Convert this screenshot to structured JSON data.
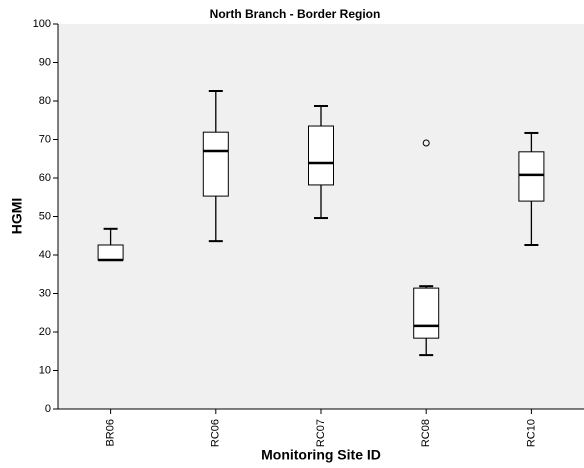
{
  "chart_data": {
    "type": "box",
    "title": "North Branch - Border Region",
    "x_label": "Monitoring Site ID",
    "y_label": "HGMI",
    "categories": [
      "BR06",
      "RC06",
      "RC07",
      "RC08",
      "RC10"
    ],
    "min": [
      38.7,
      43.6,
      49.6,
      14.0,
      42.6
    ],
    "q1": [
      38.7,
      55.3,
      58.2,
      18.4,
      54.0
    ],
    "median": [
      38.7,
      67.0,
      63.9,
      21.6,
      60.8
    ],
    "q3": [
      42.6,
      71.9,
      73.5,
      31.4,
      66.8
    ],
    "max": [
      46.8,
      82.6,
      78.7,
      31.9,
      71.7
    ],
    "outliers": [
      [],
      [],
      [],
      [
        69.1
      ],
      []
    ],
    "ylim": [
      0,
      100
    ],
    "yticks": [
      0,
      10,
      20,
      30,
      40,
      50,
      60,
      70,
      80,
      90,
      100
    ],
    "plot_background": "#f0f0f0",
    "box_color": "#ffffff",
    "grid": false
  }
}
